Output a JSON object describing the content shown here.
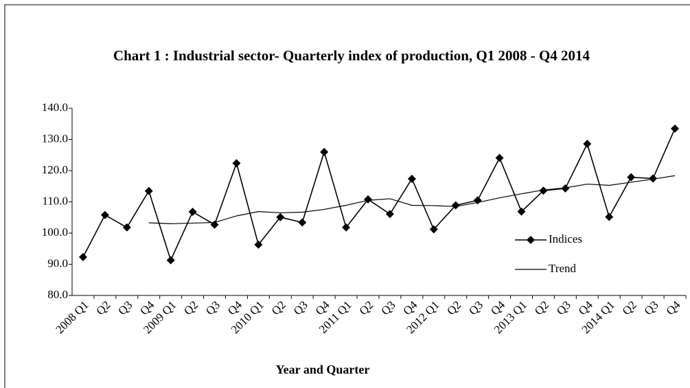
{
  "chart_data": {
    "type": "line",
    "title": "Chart 1 : Industrial sector- Quarterly index of production, Q1 2008 - Q4 2014",
    "x_label": "Year and Quarter",
    "categories": [
      "2008 Q1",
      "Q2",
      "Q3",
      "Q4",
      "2009 Q1",
      "Q2",
      "Q3",
      "Q4",
      "2010 Q1",
      "Q2",
      "Q3",
      "Q4",
      "2011 Q1",
      "Q2",
      "Q3",
      "Q4",
      "2012 Q1",
      "Q2",
      "Q3",
      "Q4",
      "2013 Q1",
      "Q2",
      "Q3",
      "Q4",
      "2014 Q1",
      "Q2",
      "Q3",
      "Q4"
    ],
    "series": [
      {
        "name": "Indices",
        "color": "#000000",
        "marker": "diamond",
        "values": [
          92.3,
          105.8,
          101.8,
          113.5,
          91.3,
          106.8,
          102.7,
          122.4,
          96.3,
          105.1,
          103.4,
          126.0,
          101.8,
          110.8,
          106.1,
          117.4,
          101.2,
          108.9,
          110.5,
          124.1,
          106.9,
          113.6,
          114.3,
          128.6,
          105.2,
          117.9,
          117.5,
          133.5
        ]
      },
      {
        "name": "Trend",
        "color": "#000000",
        "values": [
          null,
          null,
          null,
          103.3,
          103.0,
          103.2,
          103.4,
          105.5,
          106.9,
          106.5,
          106.7,
          107.6,
          108.9,
          110.5,
          111.0,
          108.9,
          108.8,
          108.5,
          109.8,
          111.3,
          112.6,
          113.8,
          114.5,
          115.7,
          115.3,
          116.3,
          117.3,
          118.4
        ]
      }
    ],
    "ylim": [
      80,
      140
    ],
    "yticks": [
      {
        "value": 80,
        "label": "80.0"
      },
      {
        "value": 90,
        "label": "90.0"
      },
      {
        "value": 100,
        "label": "100.0"
      },
      {
        "value": 110,
        "label": "110.0"
      },
      {
        "value": 120,
        "label": "120.0"
      },
      {
        "value": 130,
        "label": "130.0"
      },
      {
        "value": 140,
        "label": "140.0"
      }
    ],
    "legend": "right"
  }
}
